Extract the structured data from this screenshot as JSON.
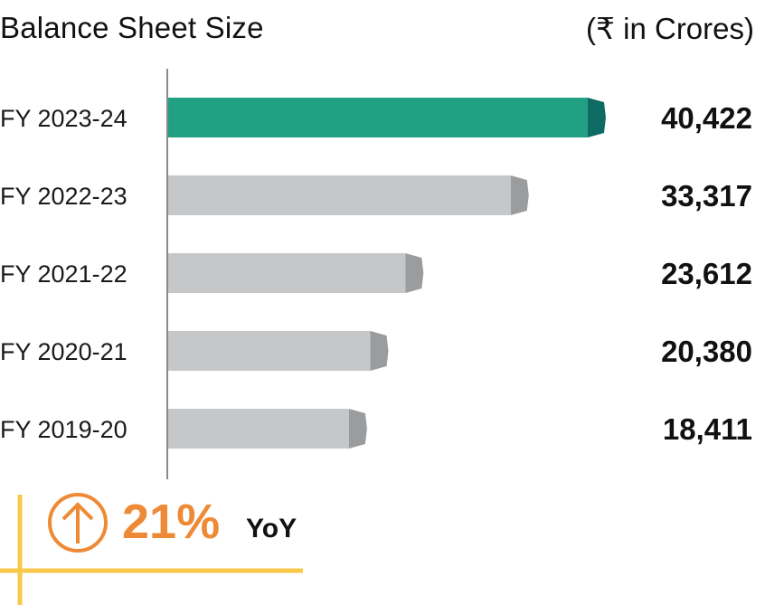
{
  "title": "Balance Sheet Size",
  "unit_label": "(₹ in Crores)",
  "chart_data": {
    "type": "bar",
    "orientation": "horizontal",
    "title": "Balance Sheet Size",
    "unit": "(₹ in Crores)",
    "categories": [
      "FY 2023-24",
      "FY 2022-23",
      "FY 2021-22",
      "FY 2020-21",
      "FY 2019-20"
    ],
    "values": [
      40422,
      33317,
      23612,
      20380,
      18411
    ],
    "value_labels": [
      "40,422",
      "33,317",
      "23,612",
      "20,380",
      "18,411"
    ],
    "highlight_index": 0,
    "xlim": [
      0,
      40422
    ],
    "colors": {
      "highlight": "#21a084",
      "highlight_cap": "#0e6b63",
      "bar": "#c6c7c8",
      "cap": "#9b9c9e",
      "axis": "#8a8a8a"
    }
  },
  "yoy": {
    "percent": "21%",
    "label": "YoY",
    "icon": "arrow-up-circle-icon",
    "accent_color": "#ee8a35",
    "line_color": "#f7c84a"
  }
}
